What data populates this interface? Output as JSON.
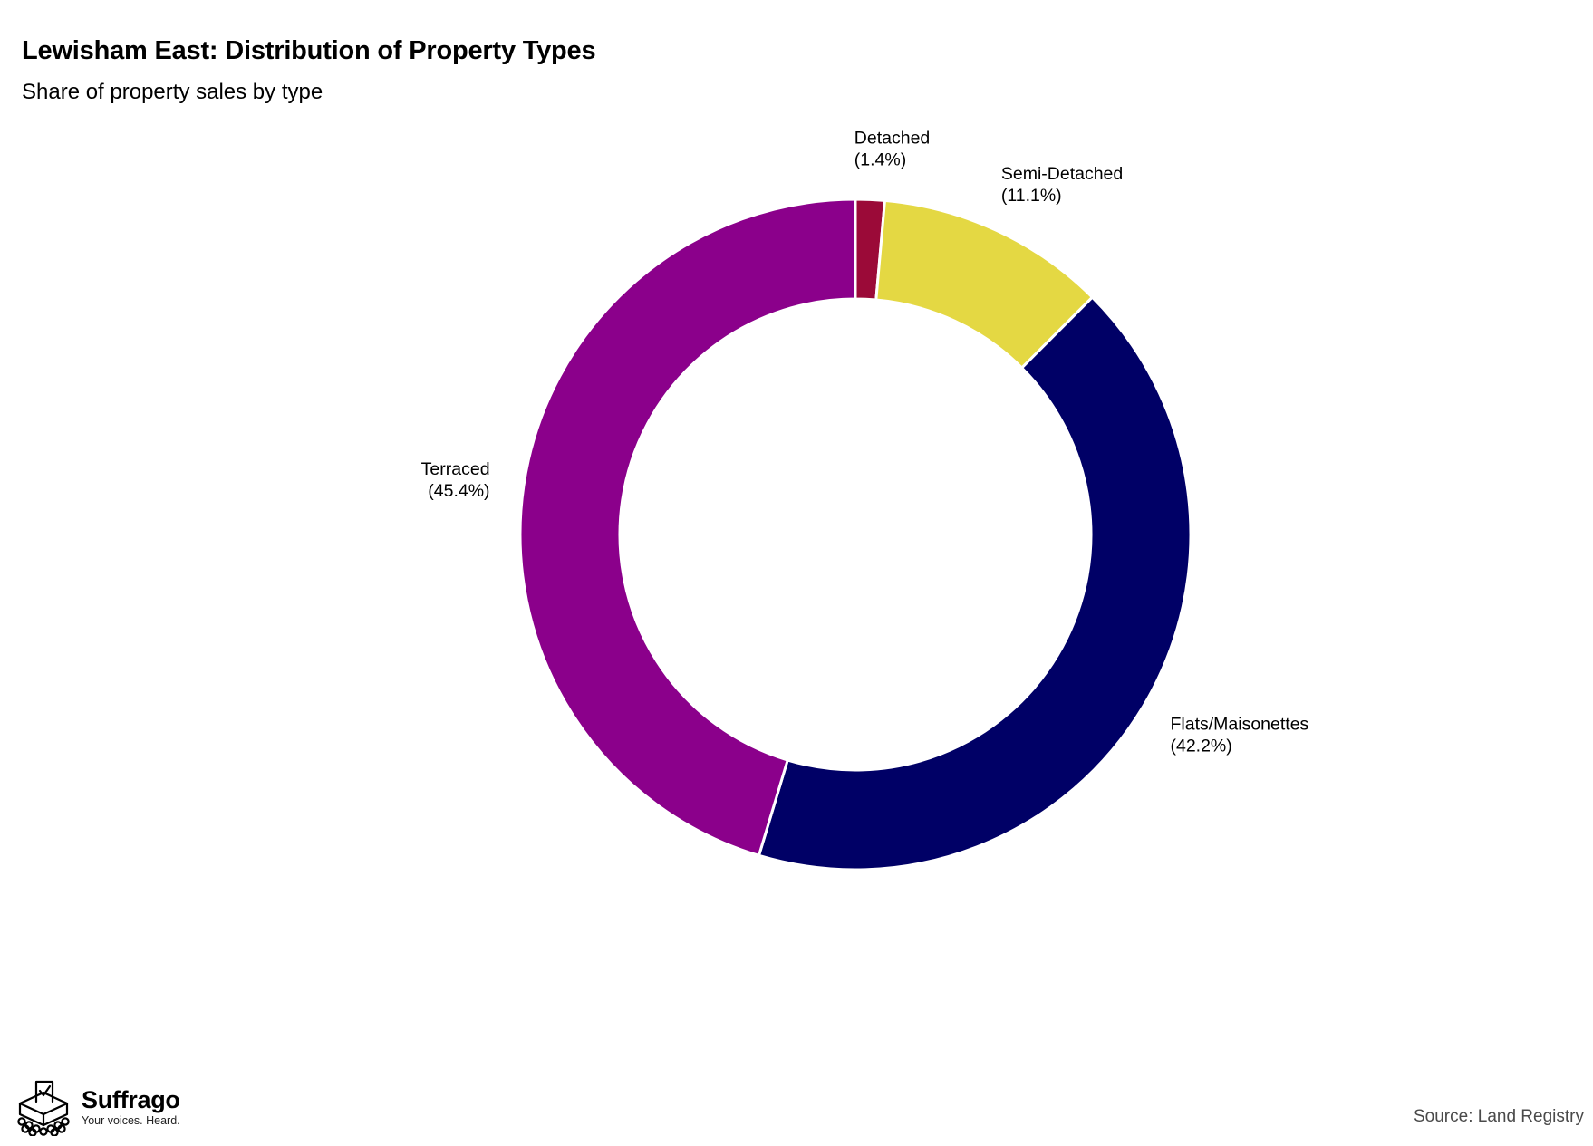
{
  "chart_data": {
    "type": "pie",
    "variant": "donut",
    "title": "Lewisham East: Distribution of Property Types",
    "subtitle": "Share of property sales by type",
    "categories": [
      "Detached",
      "Semi-Detached",
      "Flats/Maisonettes",
      "Terraced"
    ],
    "values": [
      1.4,
      11.1,
      42.2,
      45.4
    ],
    "value_labels": [
      "(1.4%)",
      "(11.1%)",
      "(42.2%)",
      "(45.4%)"
    ],
    "colors": [
      "#9b0a38",
      "#e4d843",
      "#000066",
      "#8b008b"
    ],
    "start": "top",
    "direction": "clockwise",
    "legend": "none",
    "labels_placement": "outside"
  },
  "branding": {
    "name": "Suffrago",
    "tagline": "Your voices. Heard.",
    "logo_icon": "ballot-box-icon"
  },
  "source": "Source: Land Registry"
}
